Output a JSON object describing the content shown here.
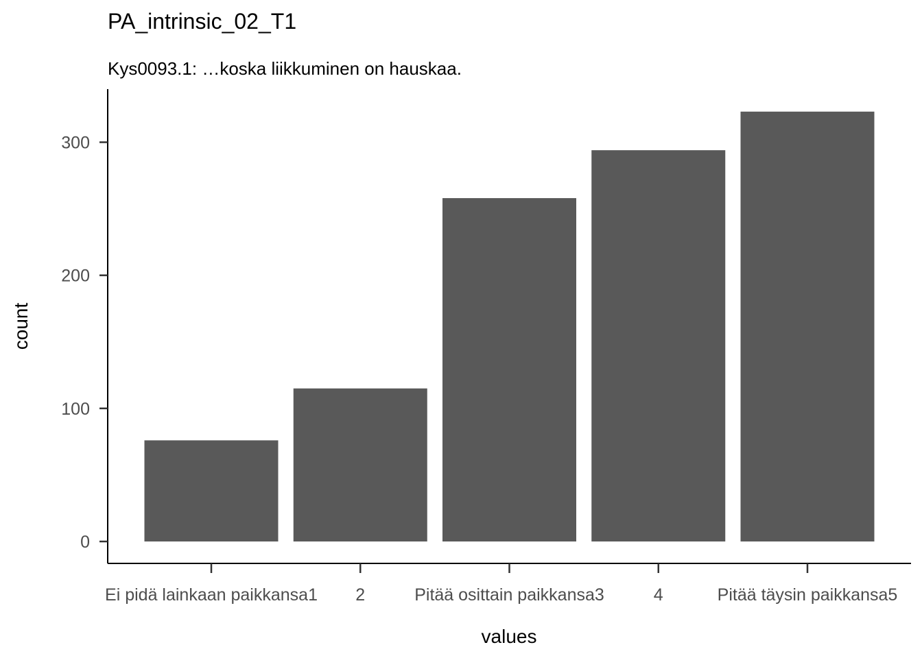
{
  "chart_data": {
    "type": "bar",
    "title": "PA_intrinsic_02_T1",
    "subtitle": "Kys0093.1: …koska liikkuminen on hauskaa.",
    "xlabel": "values",
    "ylabel": "count",
    "categories": [
      "Ei pidä lainkaan paikkansa1",
      "2",
      "Pitää osittain paikkansa3",
      "4",
      "Pitää täysin paikkansa5"
    ],
    "values": [
      76,
      115,
      258,
      294,
      323
    ],
    "yticks": [
      0,
      100,
      200,
      300
    ],
    "ylim": [
      0,
      335
    ],
    "bar_color": "#595959",
    "grid": false,
    "legend": "none"
  }
}
